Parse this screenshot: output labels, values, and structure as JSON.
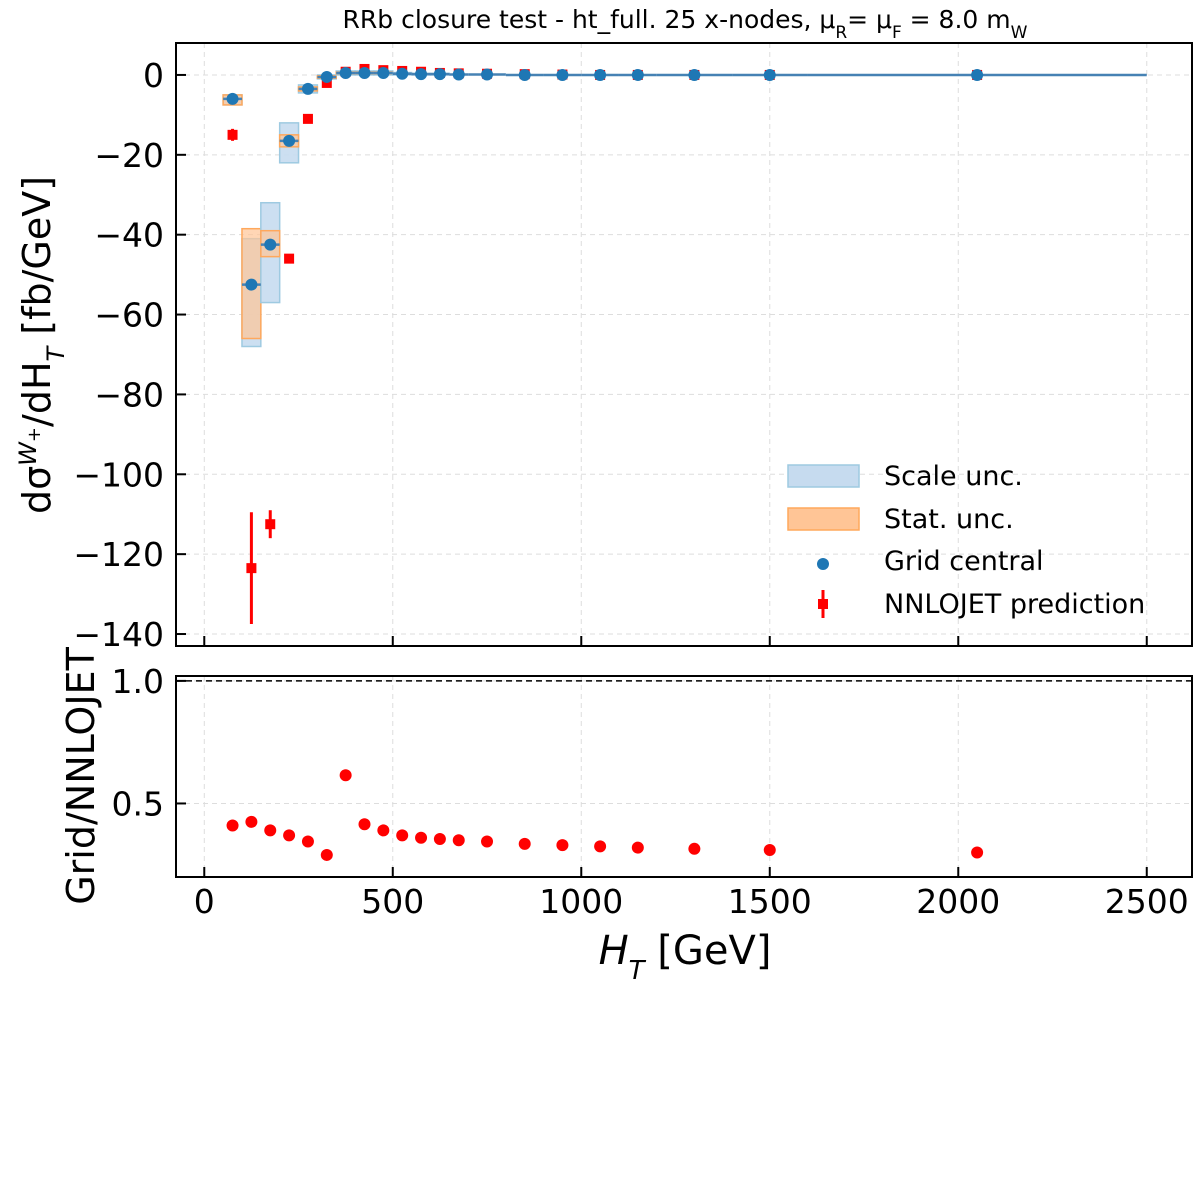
{
  "chart_data": {
    "type": "scatter",
    "title": "RRb closure test  -  ht_full. 25 x-nodes, μ",
    "title_sub1": "R",
    "title_mid": "= μ",
    "title_sub2": "F",
    "title_end": " = 8.0 m",
    "title_sub3": "W",
    "xlabel_main": "H",
    "xlabel_sub": "T",
    "xlabel_unit": " [GeV]",
    "ylabel_main_a": "dσ",
    "ylabel_sup": "W",
    "ylabel_sup2": "+",
    "ylabel_main_b": "/dH",
    "ylabel_sub": "T",
    "ylabel_unit": "  [fb/GeV]",
    "ratio_ylabel": "Grid/NNLOJET",
    "xlim": [
      -75,
      2620
    ],
    "ylim": [
      -143,
      8
    ],
    "ratio_ylim": [
      0.2,
      1.02
    ],
    "xticks": [
      0,
      500,
      1000,
      1500,
      2000,
      2500
    ],
    "yticks": [
      0,
      -20,
      -40,
      -60,
      -80,
      -100,
      -120,
      -140
    ],
    "ratio_yticks": [
      0.5,
      1.0
    ],
    "xtick_labels": [
      "0",
      "500",
      "1000",
      "1500",
      "2000",
      "2500"
    ],
    "ytick_labels": [
      "0",
      "−20",
      "−40",
      "−60",
      "−80",
      "−100",
      "−120",
      "−140"
    ],
    "ratio_ytick_labels": [
      "0.5",
      "1.0"
    ],
    "grid": true,
    "legend_position": "lower-right",
    "legend": {
      "scale": "Scale unc.",
      "stat": "Stat. unc.",
      "grid": "Grid central",
      "nnlojet": "NNLOJET prediction"
    },
    "colors": {
      "grid_central": "#1f77b4",
      "nnlojet": "#ff0000",
      "scale_fill": "#c6dbef",
      "scale_edge": "#9ecae1",
      "stat_fill": "#ffc596",
      "stat_edge": "#ffa85c",
      "line": "#4682b4"
    },
    "grid_central": {
      "x": [
        75,
        125,
        175,
        225,
        275,
        325,
        375,
        425,
        475,
        525,
        575,
        625,
        675,
        750,
        850,
        950,
        1050,
        1150,
        1300,
        1500,
        2050
      ],
      "y": [
        -6,
        -52.5,
        -42.5,
        -16.5,
        -3.5,
        -0.5,
        0.5,
        0.5,
        0.5,
        0.3,
        0.2,
        0.2,
        0.1,
        0.1,
        0,
        0,
        0,
        0,
        0,
        0,
        0
      ]
    },
    "bins": {
      "lo": [
        50,
        100,
        150,
        200,
        250,
        300,
        350,
        400,
        450,
        500,
        550,
        600,
        650,
        700,
        800,
        900,
        1000,
        1100,
        1200,
        1400,
        1600
      ],
      "hi": [
        100,
        150,
        200,
        250,
        300,
        350,
        400,
        450,
        500,
        550,
        600,
        650,
        700,
        800,
        900,
        1000,
        1100,
        1200,
        1400,
        1600,
        2500
      ]
    },
    "scale_band": {
      "lo": [
        -7.5,
        -68,
        -57,
        -22,
        -4.5,
        -1,
        0,
        0,
        0,
        0,
        0,
        0,
        0,
        0,
        0,
        0,
        0,
        0,
        0,
        0,
        0
      ],
      "hi": [
        -5,
        -41,
        -32,
        -12,
        -2.5,
        0,
        1,
        1,
        1,
        0.6,
        0.4,
        0.4,
        0.2,
        0.2,
        0,
        0,
        0,
        0,
        0,
        0,
        0
      ]
    },
    "stat_band": {
      "lo": [
        -7.5,
        -66,
        -45.5,
        -18,
        -4,
        -0.8,
        0.3,
        0.3,
        0.3,
        0.2,
        0.1,
        0.1,
        0,
        0,
        0,
        0,
        0,
        0,
        0,
        0,
        0
      ],
      "hi": [
        -5,
        -38.5,
        -39,
        -15,
        -3,
        -0.2,
        0.7,
        0.7,
        0.7,
        0.4,
        0.3,
        0.3,
        0.2,
        0.2,
        0,
        0,
        0,
        0,
        0,
        0,
        0
      ]
    },
    "nnlojet": {
      "x": [
        75,
        125,
        175,
        225,
        275,
        325,
        375,
        425,
        475,
        525,
        575,
        625,
        675,
        750,
        850,
        950,
        1050,
        1150,
        1300,
        1500,
        2050
      ],
      "y": [
        -15,
        -123.5,
        -112.5,
        -46,
        -11,
        -2,
        0.8,
        1.5,
        1.2,
        1,
        0.8,
        0.5,
        0.4,
        0.3,
        0.2,
        0.1,
        0,
        0,
        0,
        0,
        0
      ],
      "err": [
        1.5,
        14,
        3.5,
        1,
        0.5,
        0.3,
        0.2,
        0.2,
        0.2,
        0.2,
        0.1,
        0.1,
        0.1,
        0.1,
        0.1,
        0,
        0,
        0,
        0,
        0,
        0
      ]
    },
    "ratio": {
      "x": [
        75,
        125,
        175,
        225,
        275,
        325,
        375,
        425,
        475,
        525,
        575,
        625,
        675,
        750,
        850,
        950,
        1050,
        1150,
        1300,
        1500,
        2050
      ],
      "y": [
        0.41,
        0.425,
        0.39,
        0.37,
        0.345,
        0.29,
        0.615,
        0.415,
        0.39,
        0.37,
        0.36,
        0.355,
        0.35,
        0.345,
        0.335,
        0.33,
        0.325,
        0.32,
        0.315,
        0.31,
        0.3
      ]
    }
  }
}
